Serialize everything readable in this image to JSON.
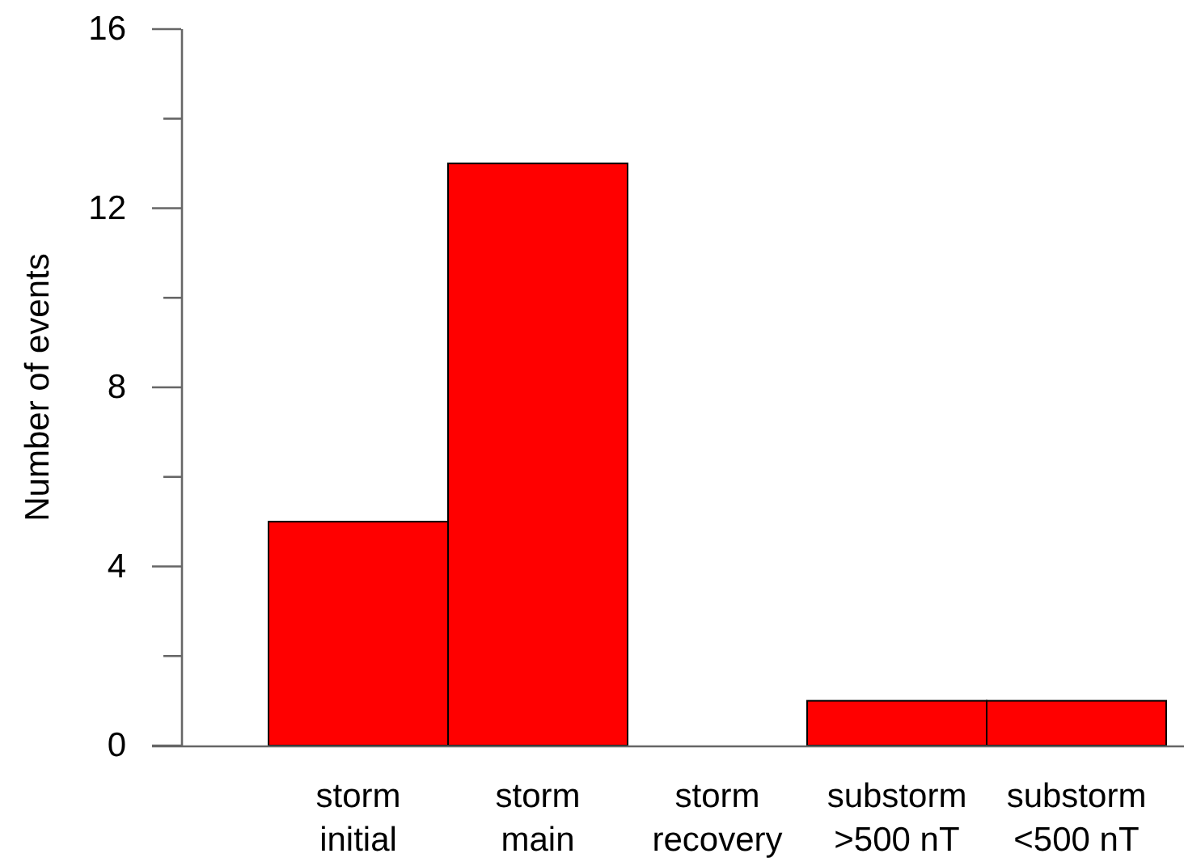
{
  "chart_data": {
    "type": "bar",
    "ylabel": "Number of events",
    "categories": [
      "storm\ninitial",
      "storm\nmain",
      "storm\nrecovery",
      "substorm\n>500 nT",
      "substorm\n<500 nT"
    ],
    "values": [
      5,
      13,
      0,
      1,
      1
    ],
    "color": "#ff0000",
    "ylim": [
      0,
      16
    ],
    "yticks": [
      0,
      {
        "value": 2,
        "label": null
      },
      4,
      {
        "value": 6,
        "label": null
      },
      8,
      {
        "value": 10,
        "label": null
      },
      12,
      {
        "value": 14,
        "label": null
      },
      16
    ]
  }
}
